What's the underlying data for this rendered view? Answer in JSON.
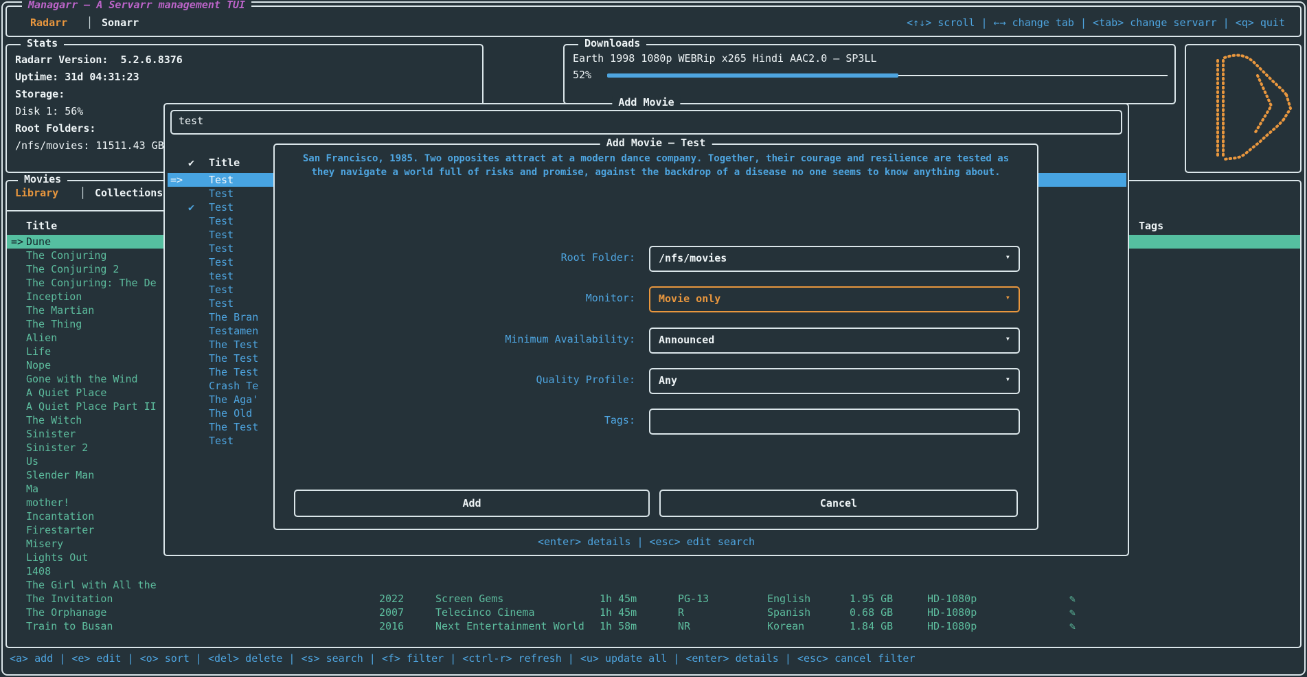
{
  "colors": {
    "background": "#253239",
    "border": "#dbe6ea",
    "accent_orange": "#e9973e",
    "accent_blue": "#4ea5e0",
    "accent_teal": "#5dbd9e",
    "title_purple": "#bb64c8",
    "selected_blue_bg": "#47a4e2",
    "selected_teal_bg": "#55bfa0"
  },
  "top_bar": {
    "app_title": "Managarr – A Servarr management TUI",
    "tabs": [
      {
        "label": "Radarr",
        "active": true
      },
      {
        "label": "Sonarr",
        "active": false
      }
    ],
    "help": "<↑↓> scroll | ←→ change tab | <tab> change servarr | <q> quit"
  },
  "stats": {
    "box_title": "Stats",
    "version": "Radarr Version:  5.2.6.8376",
    "uptime": "Uptime: 31d 04:31:23",
    "storage_label": "Storage:",
    "disk_label": "Disk 1: 56%",
    "disk_percent": 56,
    "root_folders_label": "Root Folders:",
    "root_folder": "/nfs/movies: 11511.43 GB"
  },
  "downloads": {
    "box_title": "Downloads",
    "item_title": "Earth 1998 1080p WEBRip x265 Hindi AAC2.0 – SP3LL",
    "percent_label": "52%",
    "percent": 52
  },
  "search_popup": {
    "box_title": "Add Movie",
    "query": "test",
    "header_check": "✔",
    "header_title": "Title",
    "selected_prefix": "=>",
    "results": [
      {
        "title": "Test",
        "selected": true
      },
      {
        "title": "Test"
      },
      {
        "title": "Test",
        "checked": true
      },
      {
        "title": "Test"
      },
      {
        "title": "Test"
      },
      {
        "title": "Test"
      },
      {
        "title": "Test"
      },
      {
        "title": "test"
      },
      {
        "title": "Test"
      },
      {
        "title": "Test"
      },
      {
        "title": "The Bran"
      },
      {
        "title": "Testamen"
      },
      {
        "title": "The Test"
      },
      {
        "title": "The Test"
      },
      {
        "title": "The Test"
      },
      {
        "title": "Crash Te"
      },
      {
        "title": "The Aga'"
      },
      {
        "title": "The Old"
      },
      {
        "title": "The Test"
      },
      {
        "title": "Test"
      }
    ],
    "help": "<enter> details | <esc> edit search"
  },
  "modal": {
    "title": "Add Movie – Test",
    "overview_lines": [
      "San Francisco, 1985. Two opposites attract at a modern dance company. Together, their courage and resilience are tested as",
      "they navigate a world full of risks and promise, against the backdrop of a disease no one seems to know anything about."
    ],
    "fields": [
      {
        "label": "Root Folder:",
        "value": "/nfs/movies",
        "dropdown": true,
        "focused": false
      },
      {
        "label": "Monitor:",
        "value": "Movie only",
        "dropdown": true,
        "focused": true
      },
      {
        "label": "Minimum Availability:",
        "value": "Announced",
        "dropdown": true,
        "focused": false
      },
      {
        "label": "Quality Profile:",
        "value": "Any",
        "dropdown": true,
        "focused": false
      },
      {
        "label": "Tags:",
        "value": "",
        "dropdown": false,
        "focused": false
      }
    ],
    "add_label": "Add",
    "cancel_label": "Cancel"
  },
  "movies_panel": {
    "box_title": "Movies",
    "tabs": [
      {
        "label": "Library",
        "active": true
      },
      {
        "label": "Collections",
        "active": false
      }
    ],
    "title_header": "Title",
    "tags_header": "Tags",
    "selected_prefix": "=>",
    "edit_icon": "✎",
    "rows": [
      {
        "title": "Dune",
        "selected": true
      },
      {
        "title": "The Conjuring"
      },
      {
        "title": "The Conjuring 2"
      },
      {
        "title": "The Conjuring: The De"
      },
      {
        "title": "Inception"
      },
      {
        "title": "The Martian"
      },
      {
        "title": "The Thing"
      },
      {
        "title": "Alien"
      },
      {
        "title": "Life"
      },
      {
        "title": "Nope"
      },
      {
        "title": "Gone with the Wind"
      },
      {
        "title": "A Quiet Place"
      },
      {
        "title": "A Quiet Place Part II"
      },
      {
        "title": "The Witch"
      },
      {
        "title": "Sinister"
      },
      {
        "title": "Sinister 2"
      },
      {
        "title": "Us"
      },
      {
        "title": "Slender Man"
      },
      {
        "title": "Ma"
      },
      {
        "title": "mother!"
      },
      {
        "title": "Incantation"
      },
      {
        "title": "Firestarter"
      },
      {
        "title": "Misery"
      },
      {
        "title": "Lights Out"
      },
      {
        "title": "1408"
      },
      {
        "title": "The Girl with All the"
      },
      {
        "title": "The Invitation",
        "year": "2022",
        "studio": "Screen Gems",
        "runtime": "1h 45m",
        "rating": "PG-13",
        "language": "English",
        "size": "1.95 GB",
        "quality": "HD-1080p",
        "has_edit": true
      },
      {
        "title": "The Orphanage",
        "year": "2007",
        "studio": "Telecinco Cinema",
        "runtime": "1h 45m",
        "rating": "R",
        "language": "Spanish",
        "size": "0.68 GB",
        "quality": "HD-1080p",
        "has_edit": true
      },
      {
        "title": "Train to Busan",
        "year": "2016",
        "studio": "Next Entertainment World",
        "runtime": "1h 58m",
        "rating": "NR",
        "language": "Korean",
        "size": "1.84 GB",
        "quality": "HD-1080p",
        "has_edit": true
      }
    ]
  },
  "bottom_bar": {
    "help": "<a> add | <e> edit | <o> sort | <del> delete | <s> search | <f> filter | <ctrl-r> refresh | <u> update all | <enter> details | <esc> cancel filter"
  }
}
